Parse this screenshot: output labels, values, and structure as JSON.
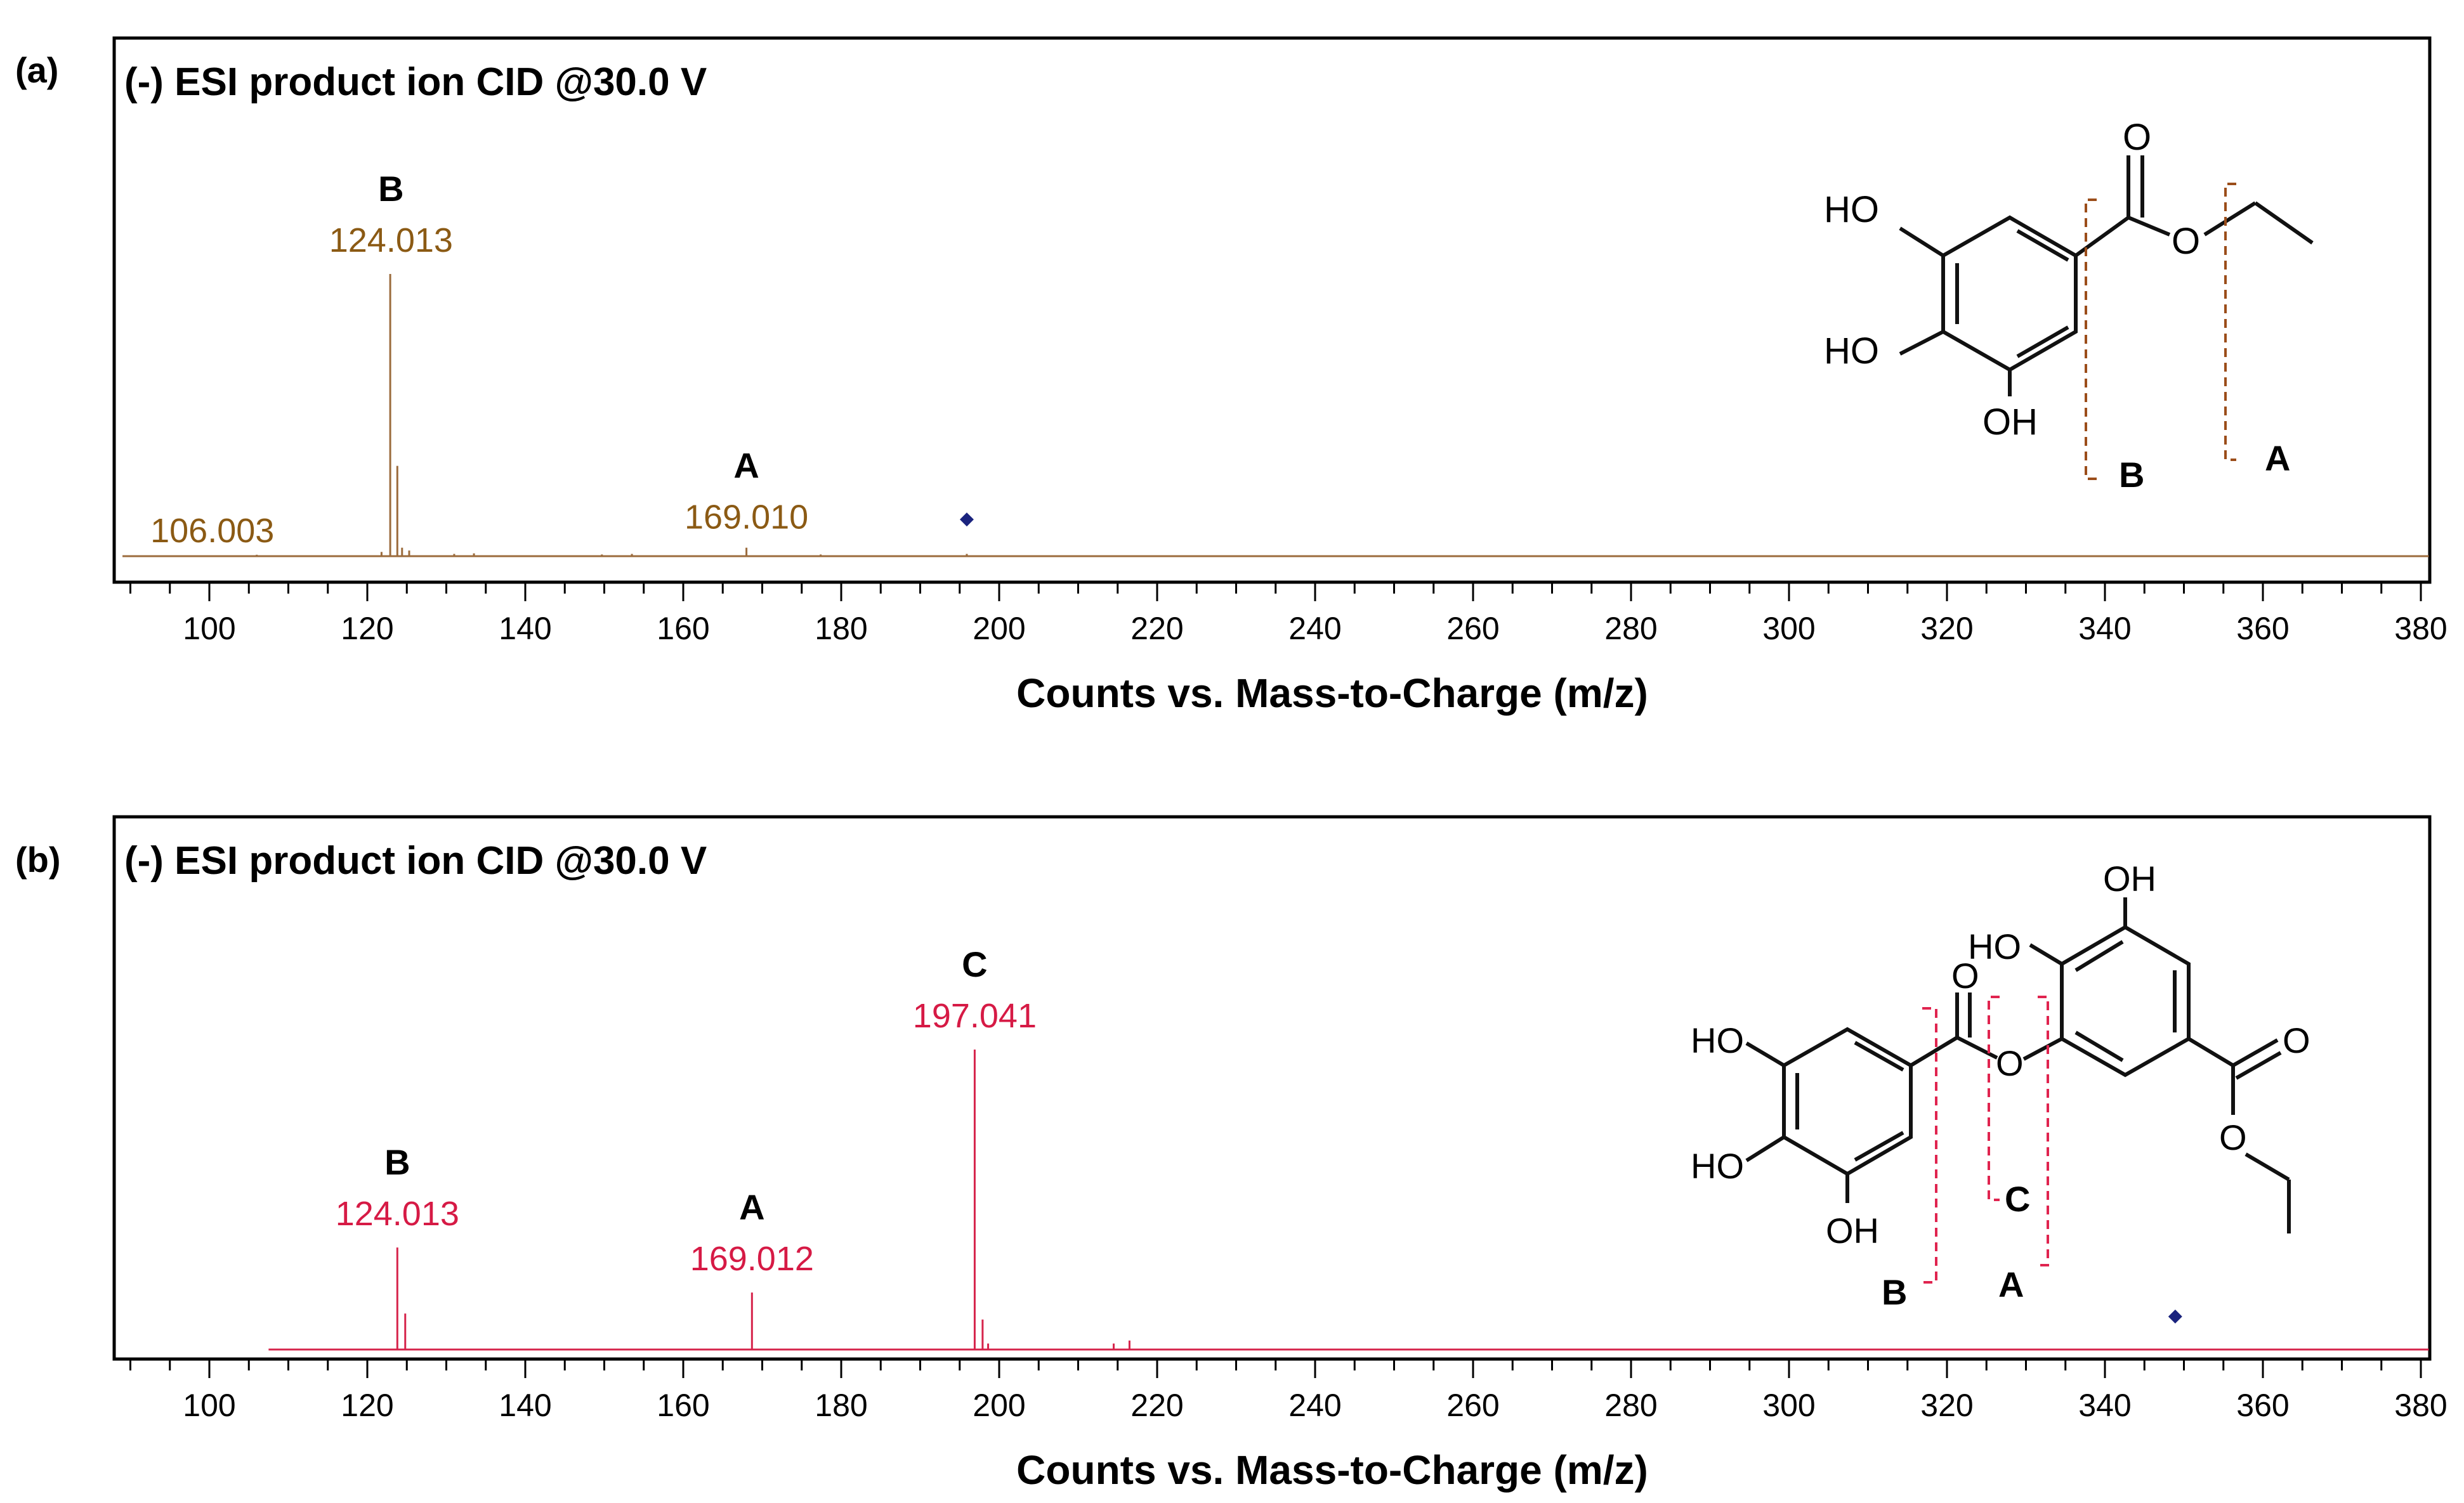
{
  "figure": {
    "xlabel": "Counts vs. Mass-to-Charge (m/z)"
  },
  "chart_data": [
    {
      "panel_label": "(a)",
      "type": "bar",
      "title": "(-) ESI product ion CID @30.0 V",
      "xlabel": "Counts vs. Mass-to-Charge (m/z)",
      "ylabel": "",
      "xlim": [
        89,
        381
      ],
      "ylim": [
        0,
        100
      ],
      "xticks": [
        100,
        120,
        140,
        160,
        180,
        200,
        220,
        240,
        260,
        280,
        300,
        320,
        340,
        360,
        380
      ],
      "grid": false,
      "color": "#9b6b3c",
      "label_color": "#8b5a14",
      "baseline_range": [
        89,
        381
      ],
      "peaks": [
        {
          "mz": 106.003,
          "intensity": 0.5
        },
        {
          "mz": 121.8,
          "intensity": 1.5
        },
        {
          "mz": 122.9,
          "intensity": 100
        },
        {
          "mz": 123.8,
          "intensity": 32
        },
        {
          "mz": 124.4,
          "intensity": 3
        },
        {
          "mz": 125.3,
          "intensity": 2
        },
        {
          "mz": 131.0,
          "intensity": 0.8
        },
        {
          "mz": 133.5,
          "intensity": 1
        },
        {
          "mz": 149.7,
          "intensity": 0.6
        },
        {
          "mz": 153.5,
          "intensity": 0.8
        },
        {
          "mz": 168.0,
          "intensity": 3
        },
        {
          "mz": 177.4,
          "intensity": 0.6
        },
        {
          "mz": 195.9,
          "intensity": 0.8
        }
      ],
      "annotations": [
        {
          "mz_text": "124.013",
          "fragment": "B",
          "mz": 123.0,
          "intensity": 100
        },
        {
          "mz_text": "169.010",
          "fragment": "A",
          "mz": 168.0,
          "intensity": 3
        },
        {
          "mz_text": "106.003",
          "fragment": "",
          "mz": 106.0,
          "intensity": 0.5
        }
      ],
      "precursor_marker": {
        "mz": 195.9,
        "intensity": 13,
        "color": "#1a237e"
      },
      "structure": {
        "substituents": [
          "HO",
          "HO",
          "OH",
          "O",
          "O"
        ],
        "cleavage_labels": [
          "B",
          "A"
        ]
      }
    },
    {
      "panel_label": "(b)",
      "type": "bar",
      "title": "(-) ESI product ion CID @30.0 V",
      "xlabel": "Counts vs. Mass-to-Charge (m/z)",
      "ylabel": "",
      "xlim": [
        89,
        381
      ],
      "ylim": [
        0,
        100
      ],
      "xticks": [
        100,
        120,
        140,
        160,
        180,
        200,
        220,
        240,
        260,
        280,
        300,
        320,
        340,
        360,
        380
      ],
      "grid": false,
      "color": "#d6244b",
      "label_color": "#d61a45",
      "baseline_range": [
        107.5,
        381
      ],
      "peaks": [
        {
          "mz": 123.8,
          "intensity": 34
        },
        {
          "mz": 124.8,
          "intensity": 12
        },
        {
          "mz": 168.7,
          "intensity": 19
        },
        {
          "mz": 196.9,
          "intensity": 100
        },
        {
          "mz": 197.9,
          "intensity": 10
        },
        {
          "mz": 198.6,
          "intensity": 2
        },
        {
          "mz": 214.5,
          "intensity": 2
        },
        {
          "mz": 216.5,
          "intensity": 3
        }
      ],
      "annotations": [
        {
          "mz_text": "124.013",
          "fragment": "B",
          "mz": 123.8,
          "intensity": 34
        },
        {
          "mz_text": "169.012",
          "fragment": "A",
          "mz": 168.7,
          "intensity": 19
        },
        {
          "mz_text": "197.041",
          "fragment": "C",
          "mz": 196.9,
          "intensity": 100
        }
      ],
      "precursor_marker": {
        "mz": 348.9,
        "intensity": 11,
        "color": "#1a237e"
      },
      "structure": {
        "substituents": [
          "HO",
          "HO",
          "OH",
          "OH",
          "HO",
          "O",
          "O",
          "O",
          "O"
        ],
        "cleavage_labels": [
          "B",
          "C",
          "A"
        ]
      }
    }
  ]
}
